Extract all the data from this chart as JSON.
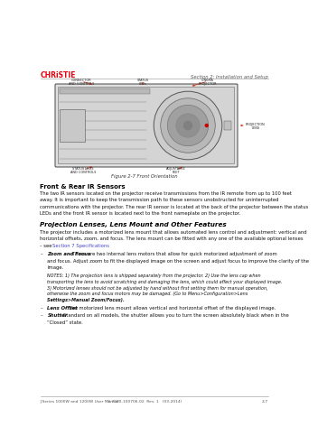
{
  "bg_color": "#ffffff",
  "christie_color": "#e8000d",
  "christie_text": "CHRiSTIE",
  "header_right_text": "Section 2: Installation and Setup",
  "figure_caption": "Figure 2-7 Front Orientation",
  "section_title1": "Front & Rear IR Sensors",
  "section_body1_lines": [
    "The two IR sensors located on the projector receive transmissions from the IR remote from up to 100 feet",
    "away. It is important to keep the transmission path to these sensors unobstructed for uninterrupted",
    "communications with the projector. The rear IR sensor is located at the back of the projector between the status",
    "LEDs and the front IR sensor is located next to the front nameplate on the projector."
  ],
  "section_title2": "Projection Lenses, Lens Mount and Other Features",
  "section_body2_lines": [
    "The projector includes a motorized lens mount that allows automated lens control and adjustment: vertical and",
    "horizontal offsets, zoom, and focus. The lens mount can be fitted with any one of the available optional lenses",
    "– see Section 7 Specifications."
  ],
  "bullet1_title": "Zoom and Focus",
  "bullet1_body_lines": [
    " – There are two internal lens motors that allow for quick motorized adjustment of zoom",
    "and focus. Adjust zoom to fit the displayed image on the screen and adjust focus to improve the clarity of the",
    "image."
  ],
  "notes_lines": [
    "NOTES: 1) The projection lens is shipped separately from the projector. 2) Use the lens cap when",
    "transporting the lens to avoid scratching and damaging the lens, which could affect your displayed image.",
    "3) Motorized lenses should not be adjusted by hand without first setting them for manual operation,",
    "otherwise the zoom and focus motors may be damaged. (Go to Menu>Configuration>Lens",
    "Settings>Manual Zoom/Focus)."
  ],
  "bullet2_title": "Lens Offset",
  "bullet2_body": " – The motorized lens mount allows vertical and horizontal offset of the displayed image.",
  "bullet3_title": "Shutter",
  "bullet3_body_lines": [
    " – Standard on all models, the shutter allows you to turn the screen absolutely black when in the",
    "“Closed” state."
  ],
  "footer_left": "J Series 1000W and 1200W User Manual",
  "footer_center": "2-7020-100706-02  Rev. 1   (03-2014)",
  "footer_right": "2-7",
  "link_color": "#4444cc",
  "text_color": "#111111",
  "gray_color": "#555555",
  "line_color": "#aaaaaa",
  "ml": 0.115,
  "mr": 0.955
}
